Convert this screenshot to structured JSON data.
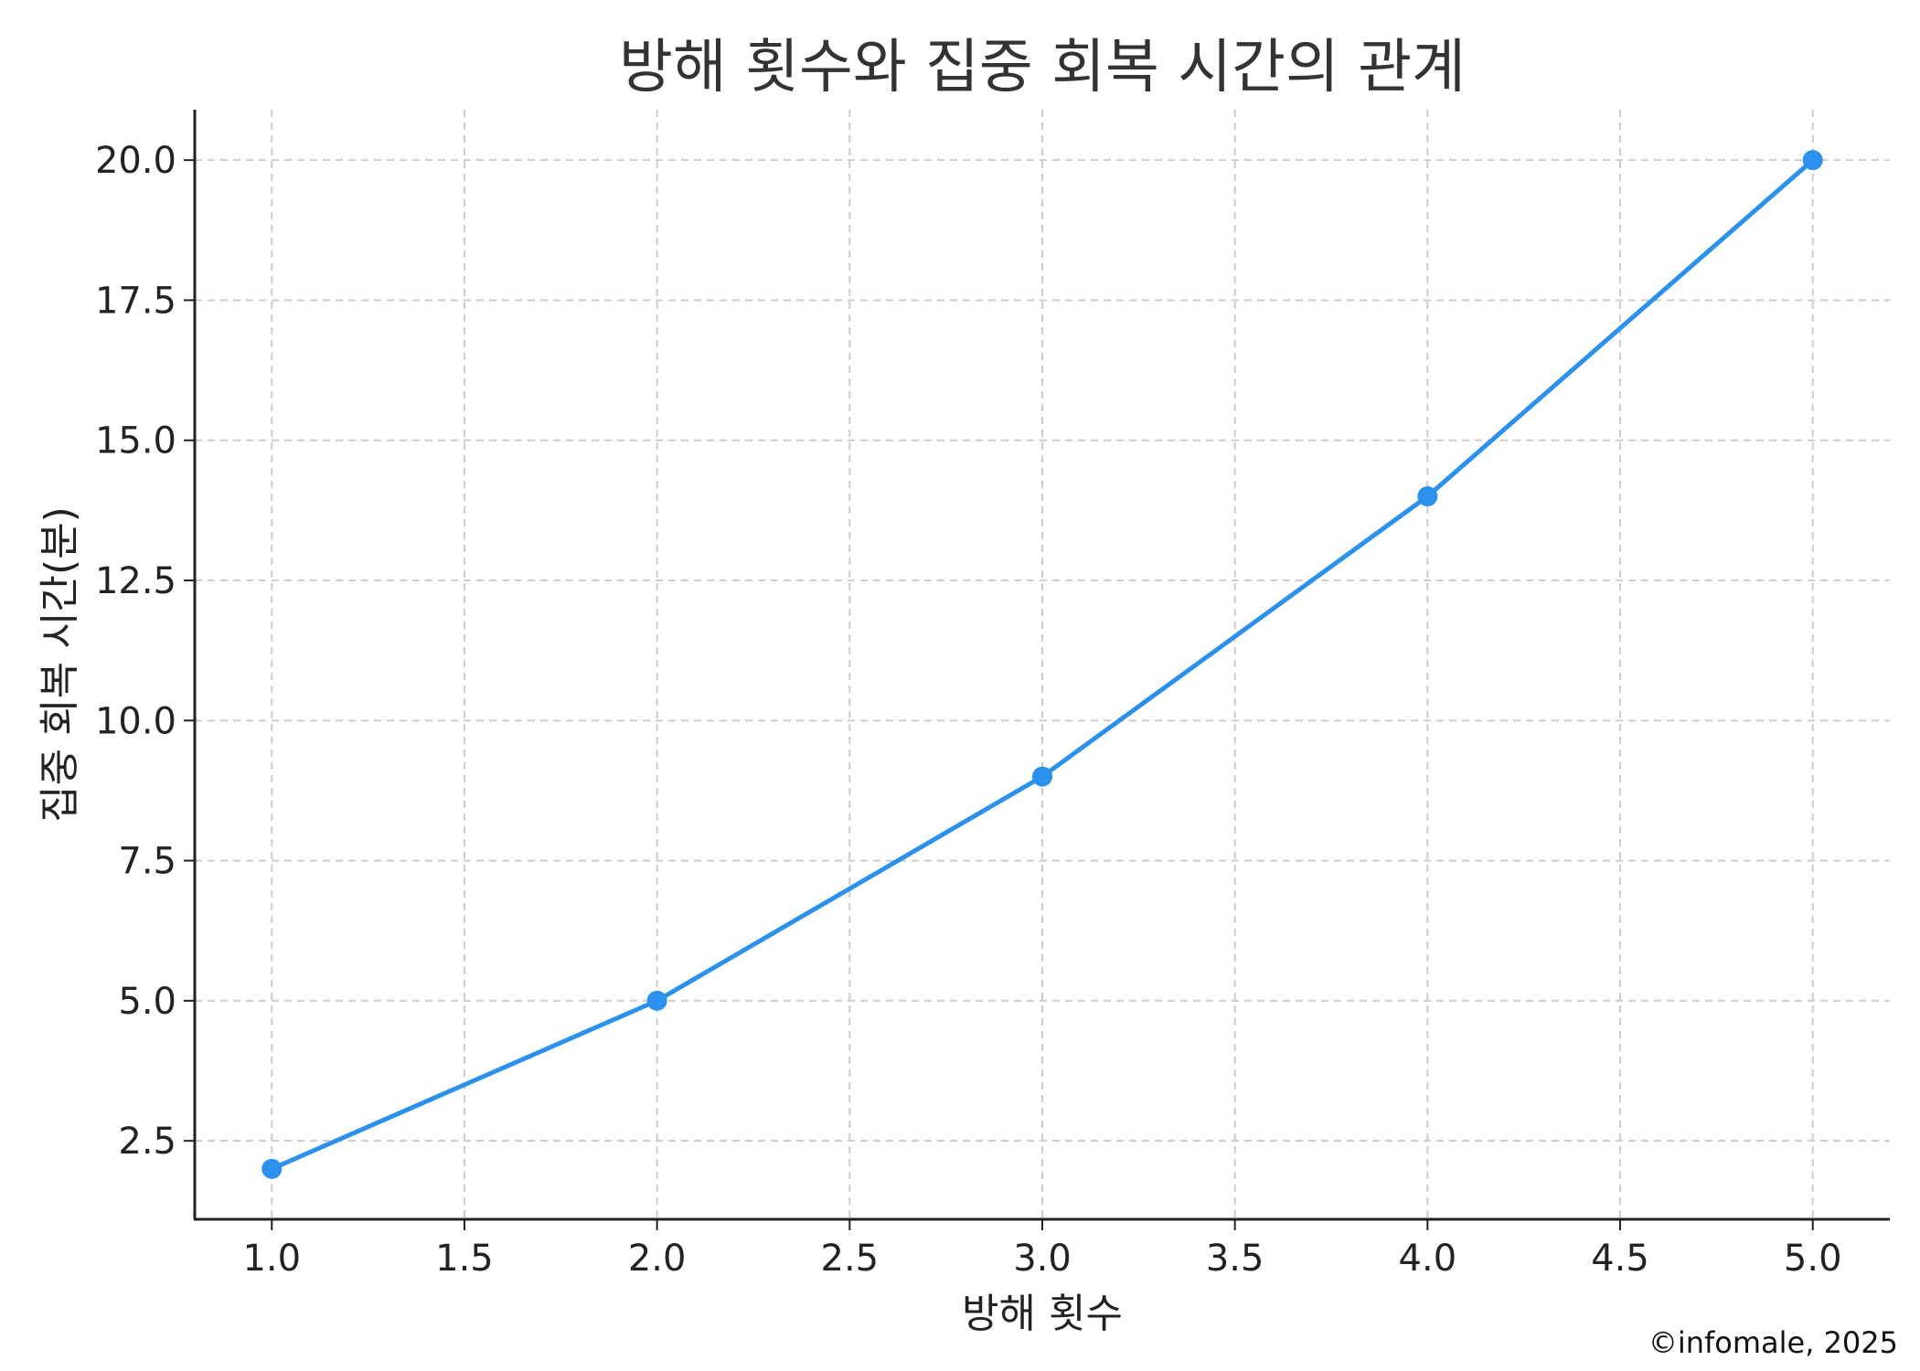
{
  "chart_data": {
    "type": "line",
    "title": "방해 횟수와 집중 회복 시간의 관계",
    "xlabel": "방해 횟수",
    "ylabel": "집중 회복 시간(분)",
    "xlim": [
      0.8,
      5.2
    ],
    "ylim": [
      1.1,
      20.9
    ],
    "xticks": [
      "1.0",
      "1.5",
      "2.0",
      "2.5",
      "3.0",
      "3.5",
      "4.0",
      "4.5",
      "5.0"
    ],
    "yticks": [
      "2.5",
      "5.0",
      "7.5",
      "10.0",
      "12.5",
      "15.0",
      "17.5",
      "20.0"
    ],
    "grid": true,
    "series": [
      {
        "x": [
          1,
          2,
          3,
          4,
          5
        ],
        "y": [
          2,
          5,
          9,
          14,
          20
        ],
        "color": "#2b91ec",
        "marker": "circle"
      }
    ]
  },
  "credit": "©infomale, 2025"
}
